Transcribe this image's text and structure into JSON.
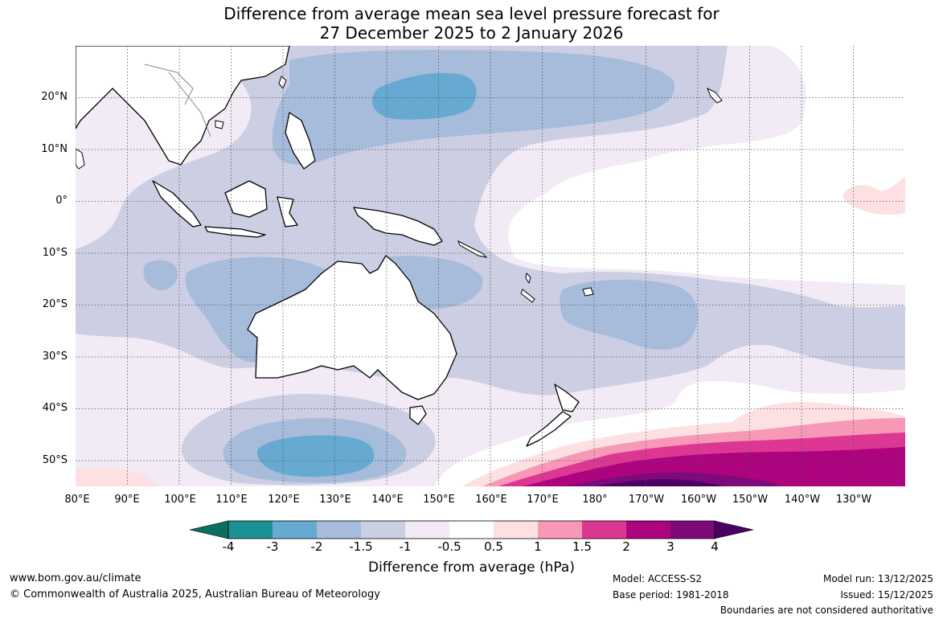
{
  "title": {
    "line1": "Difference from average mean sea level pressure forecast for",
    "line2": "27 December 2025 to 2 January 2026"
  },
  "map": {
    "lat_labels": [
      "20°N",
      "10°N",
      "0°",
      "10°S",
      "20°S",
      "30°S",
      "40°S",
      "50°S"
    ],
    "lon_labels": [
      "80°E",
      "90°E",
      "100°E",
      "110°E",
      "120°E",
      "130°E",
      "140°E",
      "150°E",
      "160°E",
      "170°E",
      "180°",
      "170°W",
      "160°W",
      "150°W",
      "140°W",
      "130°W"
    ],
    "extent": {
      "lon_min": 80,
      "lon_max": 240,
      "lat_min": -55,
      "lat_max": 30
    },
    "anomaly_regions": [
      {
        "name": "central-pacific-high-negative",
        "level": -2,
        "center": "20°N 150°E"
      },
      {
        "name": "southern-ocean-negative",
        "level": -2,
        "center": "49°S 125°E"
      },
      {
        "name": "south-pacific-positive-band",
        "level": 4,
        "center": "54°S 175°W"
      },
      {
        "name": "equatorial-east-pacific-positive",
        "level": 0.5,
        "center": "1°N 125°W"
      }
    ]
  },
  "colorbar": {
    "title": "Difference from average (hPa)",
    "tick_labels": [
      "-4",
      "-3",
      "-2",
      "-1.5",
      "-1",
      "-0.5",
      "0.5",
      "1",
      "1.5",
      "2",
      "3",
      "4"
    ],
    "colors": {
      "below_min": "#0b6f5f",
      "bins": [
        "#1b9196",
        "#66aad1",
        "#a7bbdb",
        "#cccfe3",
        "#f2eaf4",
        "#ffffff",
        "#fde0e1",
        "#f799b6",
        "#dd3794",
        "#ae037e",
        "#7c0a79"
      ],
      "above_max": "#4c0062"
    }
  },
  "footer": {
    "website": "www.bom.gov.au/climate",
    "copyright": "© Commonwealth of Australia 2025, Australian Bureau of Meteorology",
    "model": "Model: ACCESS-S2",
    "base_period": "Base period: 1981-2018",
    "model_run": "Model run: 13/12/2025",
    "issued": "Issued: 15/12/2025",
    "disclaimer": "Boundaries are not considered authoritative"
  },
  "colors": {
    "coastline": "#000000",
    "gridline": "#555555",
    "background": "#ffffff"
  }
}
